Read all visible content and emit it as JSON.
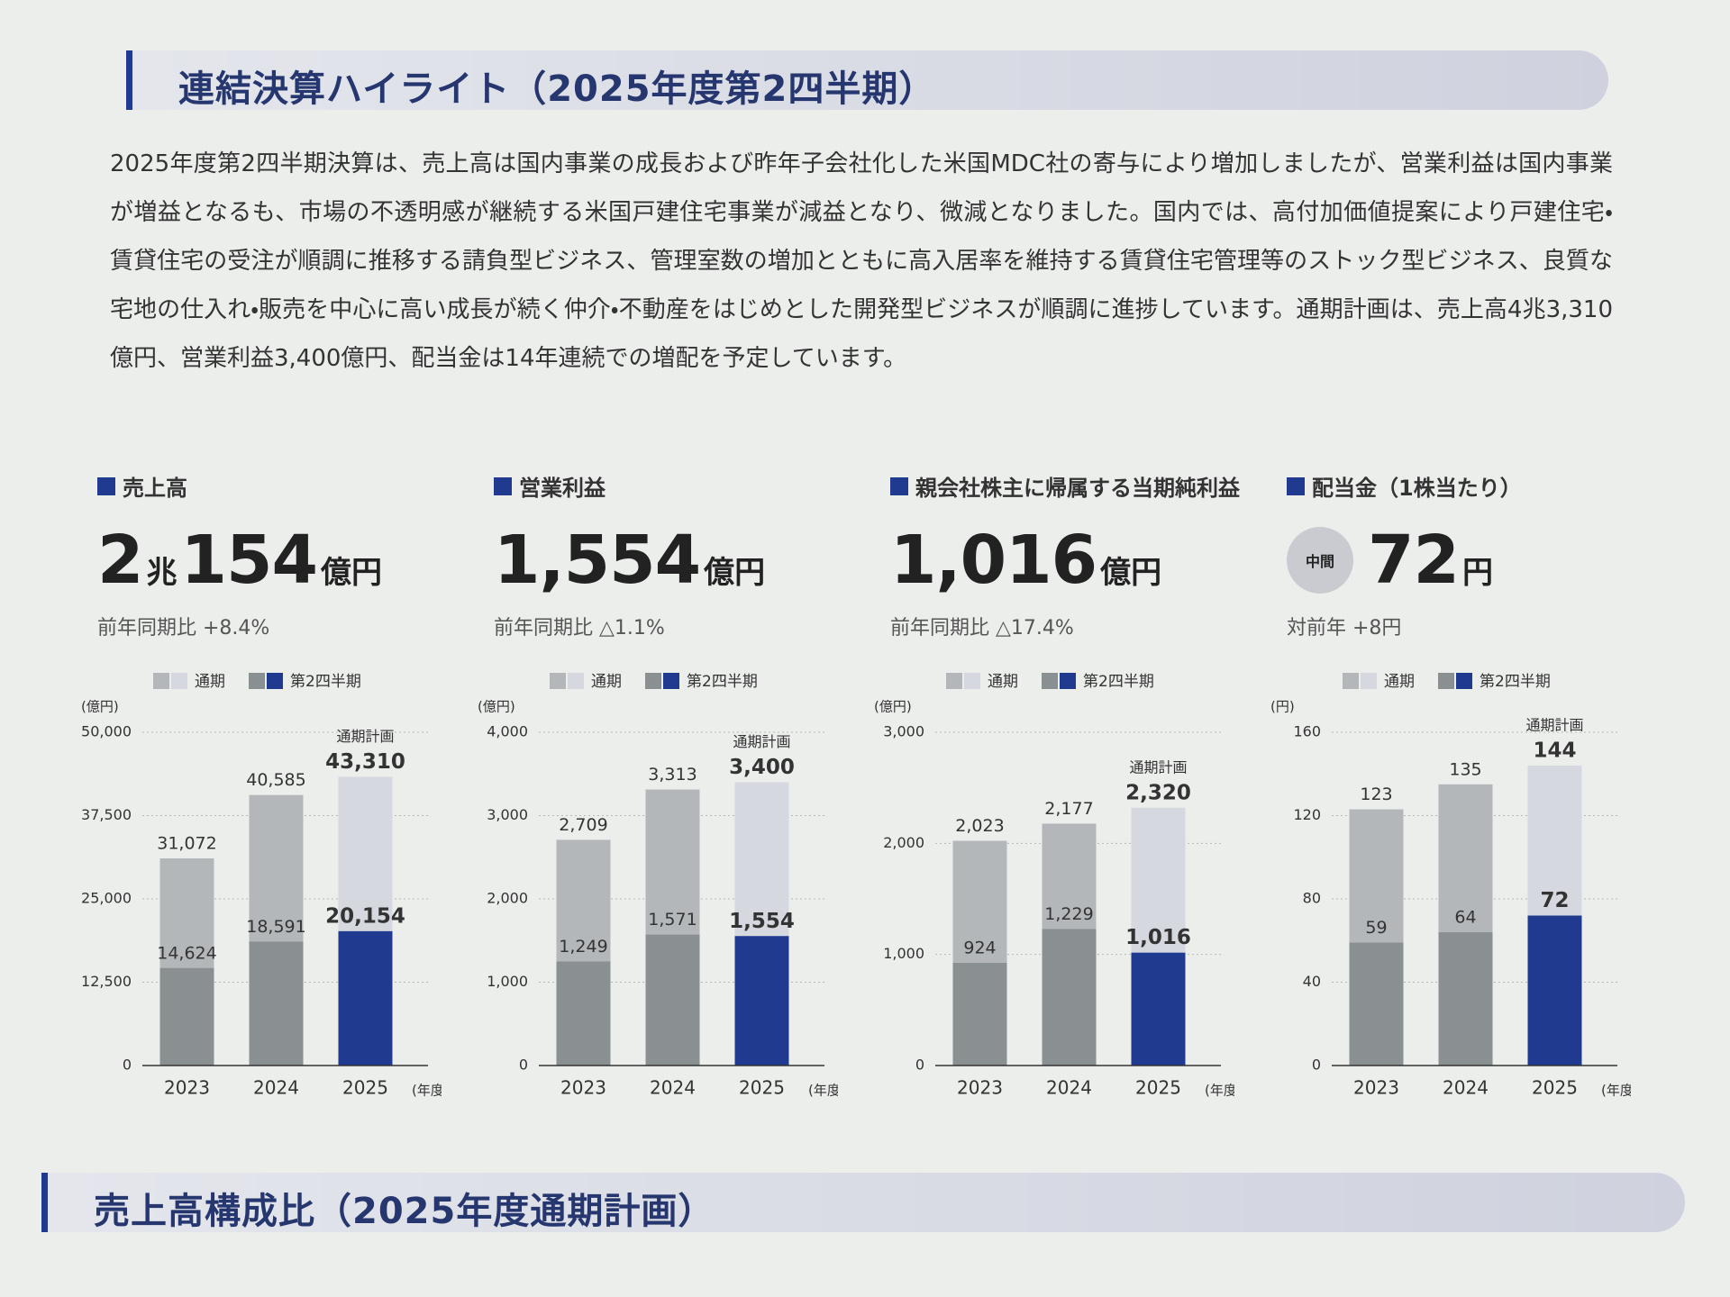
{
  "section_title": "連結決算ハイライト（2025年度第2四半期）",
  "body": "2025年度第2四半期決算は、売上高は国内事業の成長および昨年子会社化した米国MDC社の寄与により増加しましたが、営業利益は国内事業が増益となるも、市場の不透明感が継続する米国戸建住宅事業が減益となり、微減となりました。国内では、高付加価値提案により戸建住宅・賃貸住宅の受注が順調に推移する請負型ビジネス、管理室数の増加とともに高入居率を維持する賃貸住宅管理等のストック型ビジネス、良質な宅地の仕入れ・販売を中心に高い成長が続く仲介・不動産をはじめとした開発型ビジネスが順調に進捗しています。通期計画は、売上高4兆3,310億円、営業利益3,400億円、配当金は14年連続での増配を予定しています。",
  "kpis": [
    {
      "label": "売上高",
      "figure": [
        "2",
        "兆",
        "154",
        "億円"
      ],
      "change": "前年同期比 +8.4%"
    },
    {
      "label": "営業利益",
      "figure": [
        "1,554",
        "億円"
      ],
      "change": "前年同期比 △1.1%"
    },
    {
      "label": "親会社株主に帰属する当期純利益",
      "figure": [
        "1,016",
        "億円"
      ],
      "change": "前年同期比 △17.4%"
    },
    {
      "label": "配当金（1株当たり）",
      "badge": "中間",
      "figure": [
        "72",
        "円"
      ],
      "change": "対前年 +8円"
    }
  ],
  "chart_data": [
    {
      "type": "bar",
      "unit": "(億円)",
      "x_label": "(年度)",
      "categories": [
        "2023",
        "2024",
        "2025"
      ],
      "ylim": [
        0,
        50000
      ],
      "yticks": [
        0,
        {
          "value": 12500,
          "label": "12,500"
        },
        {
          "value": 25000,
          "label": "25,000"
        },
        {
          "value": 37500,
          "label": "37,500"
        },
        {
          "value": 50000,
          "label": "50,000"
        }
      ],
      "annotations": [
        {
          "text": "通期計画",
          "category": "2025"
        }
      ],
      "series": [
        {
          "name": "通期",
          "colors": [
            "#b3b7ba",
            "#b3b7ba",
            "#d5d8de"
          ],
          "values": [
            31072,
            40585,
            43310
          ],
          "value_labels": [
            "31,072",
            "40,585",
            "43,310"
          ]
        },
        {
          "name": "第2四半期",
          "colors": [
            "#8a8f92",
            "#8a8f92",
            "#1f3a8f"
          ],
          "values": [
            14624,
            18591,
            20154
          ],
          "value_labels": [
            "14,624",
            "18,591",
            "20,154"
          ]
        }
      ]
    },
    {
      "type": "bar",
      "unit": "(億円)",
      "x_label": "(年度)",
      "categories": [
        "2023",
        "2024",
        "2025"
      ],
      "ylim": [
        0,
        4000
      ],
      "yticks": [
        0,
        {
          "value": 1000,
          "label": "1,000"
        },
        {
          "value": 2000,
          "label": "2,000"
        },
        {
          "value": 3000,
          "label": "3,000"
        },
        {
          "value": 4000,
          "label": "4,000"
        }
      ],
      "annotations": [
        {
          "text": "通期計画",
          "category": "2025"
        }
      ],
      "series": [
        {
          "name": "通期",
          "colors": [
            "#b3b7ba",
            "#b3b7ba",
            "#d5d8de"
          ],
          "values": [
            2709,
            3313,
            3400
          ],
          "value_labels": [
            "2,709",
            "3,313",
            "3,400"
          ]
        },
        {
          "name": "第2四半期",
          "colors": [
            "#8a8f92",
            "#8a8f92",
            "#1f3a8f"
          ],
          "values": [
            1249,
            1571,
            1554
          ],
          "value_labels": [
            "1,249",
            "1,571",
            "1,554"
          ]
        }
      ]
    },
    {
      "type": "bar",
      "unit": "(億円)",
      "x_label": "(年度)",
      "categories": [
        "2023",
        "2024",
        "2025"
      ],
      "ylim": [
        0,
        3000
      ],
      "yticks": [
        0,
        {
          "value": 1000,
          "label": "1,000"
        },
        {
          "value": 2000,
          "label": "2,000"
        },
        {
          "value": 3000,
          "label": "3,000"
        }
      ],
      "annotations": [
        {
          "text": "通期計画",
          "category": "2025"
        }
      ],
      "series": [
        {
          "name": "通期",
          "colors": [
            "#b3b7ba",
            "#b3b7ba",
            "#d5d8de"
          ],
          "values": [
            2023,
            2177,
            2320
          ],
          "value_labels": [
            "2,023",
            "2,177",
            "2,320"
          ]
        },
        {
          "name": "第2四半期",
          "colors": [
            "#8a8f92",
            "#8a8f92",
            "#1f3a8f"
          ],
          "values": [
            924,
            1229,
            1016
          ],
          "value_labels": [
            "924",
            "1,229",
            "1,016"
          ]
        }
      ]
    },
    {
      "type": "bar",
      "unit": "(円)",
      "x_label": "(年度)",
      "categories": [
        "2023",
        "2024",
        "2025"
      ],
      "ylim": [
        0,
        160
      ],
      "yticks": [
        0,
        40,
        80,
        120,
        160
      ],
      "annotations": [
        {
          "text": "通期計画",
          "category": "2025"
        }
      ],
      "series": [
        {
          "name": "通期",
          "colors": [
            "#b3b7ba",
            "#b3b7ba",
            "#d5d8de"
          ],
          "values": [
            123,
            135,
            144
          ]
        },
        {
          "name": "第2四半期",
          "colors": [
            "#8a8f92",
            "#8a8f92",
            "#1f3a8f"
          ],
          "values": [
            59,
            64,
            72
          ]
        }
      ]
    }
  ],
  "section_title_2": "売上高構成比（2025年度通期計画）"
}
